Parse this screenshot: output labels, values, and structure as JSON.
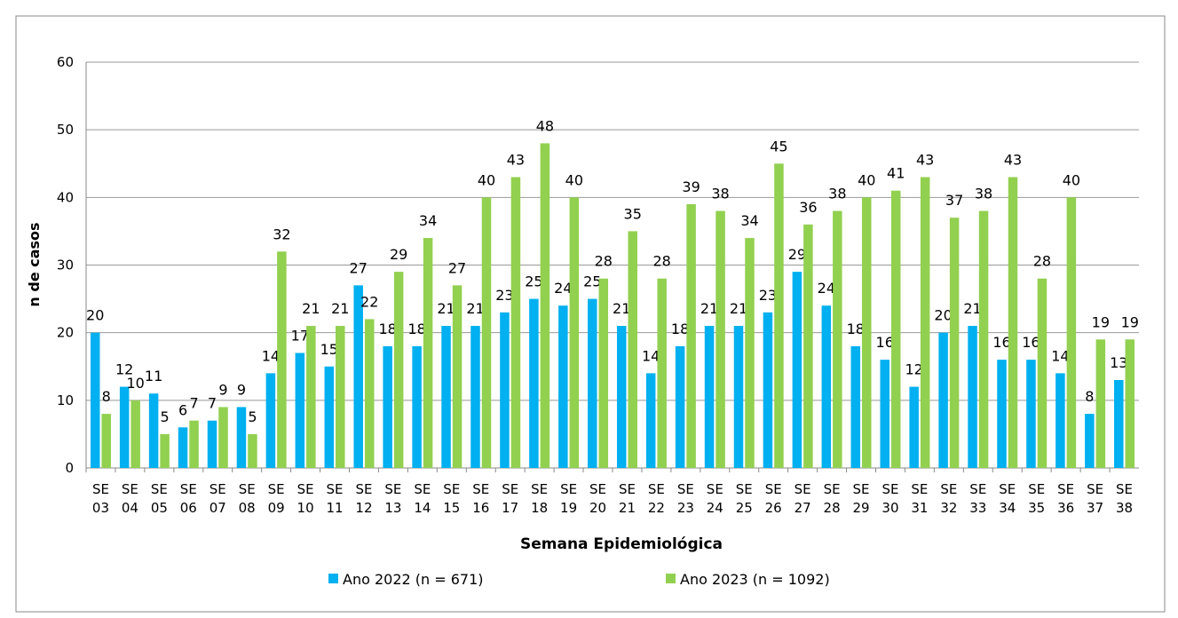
{
  "chart_data": {
    "type": "bar",
    "y_label": "n de casos",
    "x_label": "Semana Epidemiológica",
    "categories": [
      "SE 03",
      "SE 04",
      "SE 05",
      "SE 06",
      "SE 07",
      "SE 08",
      "SE 09",
      "SE 10",
      "SE 11",
      "SE 12",
      "SE 13",
      "SE 14",
      "SE 15",
      "SE 16",
      "SE 17",
      "SE 18",
      "SE 19",
      "SE 20",
      "SE 21",
      "SE 22",
      "SE 23",
      "SE 24",
      "SE 25",
      "SE 26",
      "SE 27",
      "SE 28",
      "SE 29",
      "SE 30",
      "SE 31",
      "SE 32",
      "SE 33",
      "SE 34",
      "SE 35",
      "SE 36",
      "SE 37",
      "SE 38"
    ],
    "series": [
      {
        "name": "Ano 2022 (n = 671)",
        "color": "#00b0f0",
        "values": [
          20,
          12,
          11,
          6,
          7,
          9,
          14,
          17,
          15,
          27,
          18,
          18,
          21,
          21,
          23,
          25,
          24,
          25,
          21,
          14,
          18,
          21,
          21,
          23,
          29,
          24,
          18,
          16,
          12,
          20,
          21,
          16,
          16,
          14,
          8,
          13
        ]
      },
      {
        "name": "Ano 2023 (n = 1092)",
        "color": "#92d050",
        "values": [
          8,
          10,
          5,
          7,
          9,
          5,
          32,
          21,
          21,
          22,
          29,
          34,
          27,
          40,
          43,
          48,
          40,
          28,
          35,
          28,
          39,
          38,
          34,
          45,
          36,
          38,
          40,
          41,
          43,
          37,
          38,
          43,
          28,
          40,
          19,
          19
        ]
      }
    ],
    "ylim": [
      0,
      60
    ],
    "yticks": [
      0,
      10,
      20,
      30,
      40,
      50,
      60
    ],
    "grid": true,
    "legend": "bottom"
  }
}
